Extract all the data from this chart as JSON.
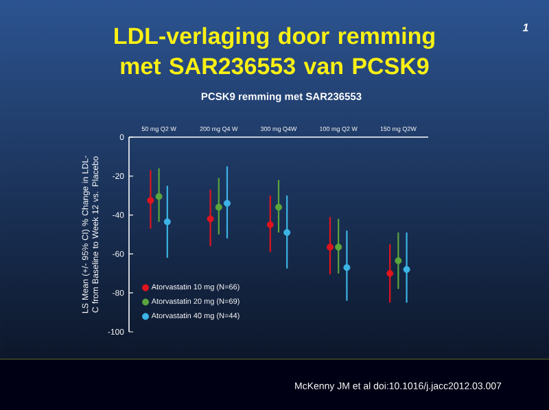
{
  "chart_data": {
    "type": "scatter",
    "title": "LDL-verlaging door remming met SAR236553 van PCSK9",
    "subtitle": "PCSK9 remming met SAR236553",
    "ylabel": "LS Mean (+/- 95% CI) % Change in LDL-C from Baseline to Week 12 vs. Placebo",
    "categories": [
      "50 mg Q2 W",
      "200 mg Q4 W",
      "300 mg Q4W",
      "100 mg Q2 W",
      "150 mg Q2W"
    ],
    "series": [
      {
        "name": "Atorvastatin 10 mg (N=66)",
        "color": "#e0141e",
        "values": [
          -32.5,
          -42,
          -45,
          -56.5,
          -70
        ],
        "errors": [
          [
            -47,
            -17
          ],
          [
            -56,
            -27
          ],
          [
            -59,
            -30
          ],
          [
            -70.5,
            -41
          ],
          [
            -85,
            -55
          ]
        ]
      },
      {
        "name": "Atorvastatin 20 mg (N=69)",
        "color": "#5aa53c",
        "values": [
          -30.5,
          -36,
          -36,
          -56.5,
          -63.5
        ],
        "errors": [
          [
            -43.5,
            -16
          ],
          [
            -50,
            -21
          ],
          [
            -49,
            -22
          ],
          [
            -70,
            -42
          ],
          [
            -78,
            -49
          ]
        ]
      },
      {
        "name": "Atorvastatin 40 mg (N=44)",
        "color": "#3cb4e6",
        "values": [
          -43.5,
          -34,
          -49,
          -67,
          -68
        ],
        "errors": [
          [
            -62,
            -25
          ],
          [
            -52,
            -15
          ],
          [
            -67.5,
            -30
          ],
          [
            -84,
            -48
          ],
          [
            -85,
            -49
          ]
        ]
      }
    ],
    "ylim": [
      -100,
      0
    ],
    "yticks": [
      0,
      -20,
      -40,
      -60,
      -80,
      -100
    ],
    "legend": "bottom left",
    "marker": "circle",
    "annotations": [
      "1",
      "McKenny JM et al doi:10.1016/j.jacc2012.03.007"
    ]
  }
}
